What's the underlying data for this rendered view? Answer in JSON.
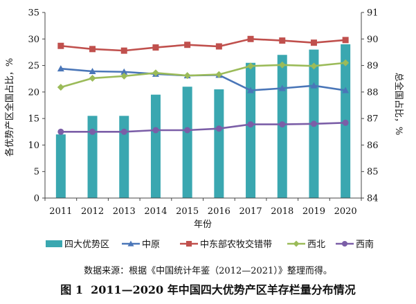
{
  "chart_data": {
    "type": "bar",
    "title": "2011—2020 年中国四大优势产区羊存栏量分布情况",
    "figure_label": "图 1",
    "xlabel": "年份",
    "ylabel_left": "各优势产区全国占比，%",
    "ylabel_right": "总全国占比，%",
    "ylim_left": [
      0,
      35
    ],
    "yticks_left": [
      0,
      5,
      10,
      15,
      20,
      25,
      30,
      35
    ],
    "ylim_right": [
      84,
      91
    ],
    "yticks_right": [
      84,
      85,
      86,
      87,
      88,
      89,
      90,
      91
    ],
    "categories": [
      "2011",
      "2012",
      "2013",
      "2014",
      "2015",
      "2016",
      "2017",
      "2018",
      "2019",
      "2020"
    ],
    "series": [
      {
        "name": "四大优势区",
        "type": "bar",
        "axis": "right",
        "color": "#3aa7b0",
        "values": [
          86.4,
          87.1,
          87.1,
          87.9,
          88.2,
          88.1,
          89.1,
          89.4,
          89.6,
          89.8
        ]
      },
      {
        "name": "中原",
        "type": "line",
        "axis": "left",
        "color": "#4a76b8",
        "marker": "triangle",
        "values": [
          24.4,
          23.9,
          23.8,
          23.4,
          23.1,
          23.2,
          20.3,
          20.7,
          21.2,
          20.3
        ]
      },
      {
        "name": "中东部农牧交错带",
        "type": "line",
        "axis": "left",
        "color": "#c0504d",
        "marker": "square",
        "values": [
          28.7,
          28.1,
          27.8,
          28.4,
          28.9,
          28.6,
          30.0,
          29.7,
          29.3,
          29.8
        ]
      },
      {
        "name": "西北",
        "type": "line",
        "axis": "left",
        "color": "#9bbb59",
        "marker": "diamond",
        "values": [
          20.9,
          22.6,
          23.0,
          23.6,
          23.1,
          23.3,
          24.9,
          25.1,
          24.9,
          25.5
        ]
      },
      {
        "name": "西南",
        "type": "line",
        "axis": "left",
        "color": "#7b5ea7",
        "marker": "circle",
        "values": [
          12.5,
          12.5,
          12.5,
          12.8,
          12.8,
          13.1,
          13.9,
          13.9,
          14.0,
          14.2
        ]
      }
    ]
  },
  "source_text": "数据来源：根据《中国统计年鉴（2012—2021）》整理而得。",
  "caption": {
    "number": "图 1",
    "text": "2011—2020 年中国四大优势产区羊存栏量分布情况"
  }
}
